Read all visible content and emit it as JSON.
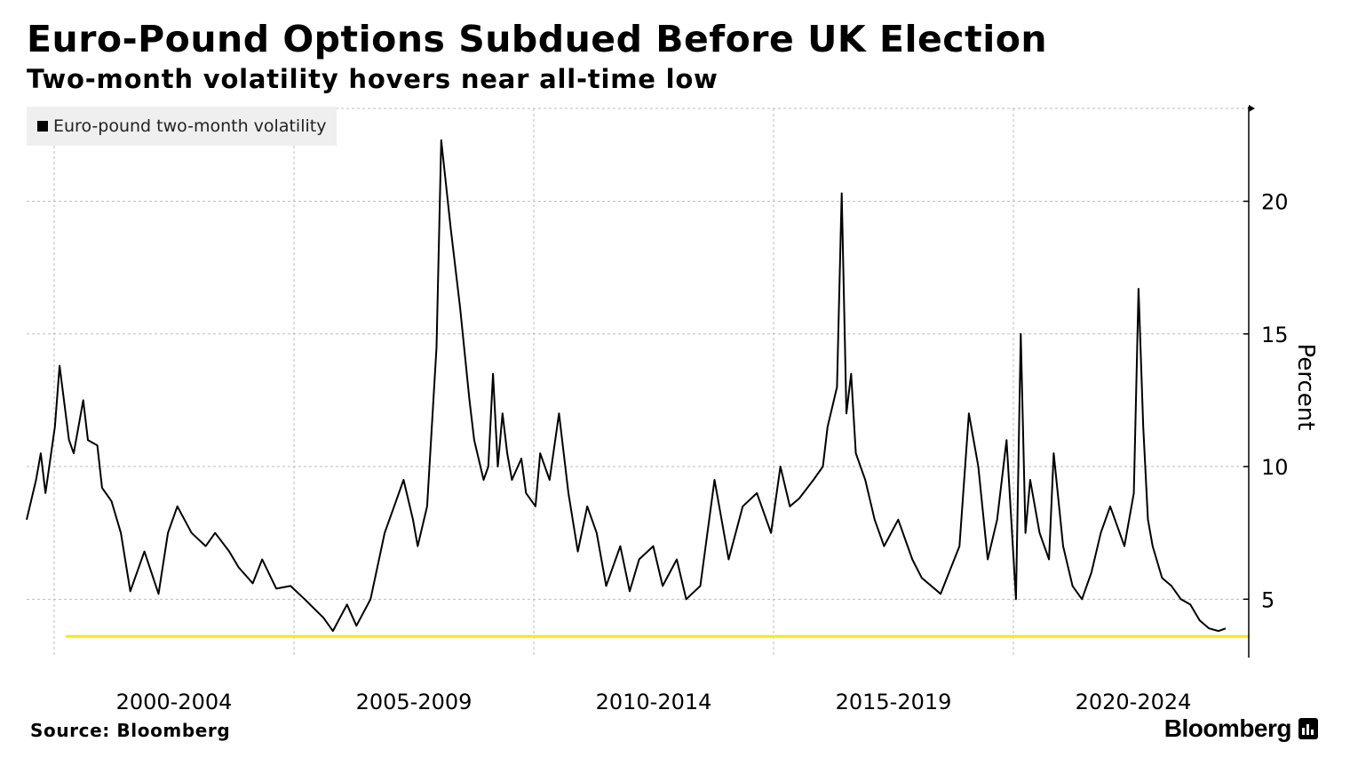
{
  "title": "Euro-Pound Options Subdued Before UK Election",
  "subtitle": "Two-month volatility hovers near all-time low",
  "source": "Source: Bloomberg",
  "brand": "Bloomberg",
  "colors": {
    "series": "#000000",
    "reference_line": "#f5e61c",
    "grid": "#bdbdbd",
    "legend_bg": "#efefef"
  },
  "chart_data": {
    "type": "line",
    "legend": [
      "Euro-pound two-month volatility"
    ],
    "legend_position": "top-left",
    "ylabel": "Percent",
    "y_axis_side": "right",
    "ylim": [
      2.8,
      23.5
    ],
    "xlim": [
      1999.0,
      2024.45
    ],
    "grid": true,
    "y_ticks": [
      5,
      10,
      15,
      20
    ],
    "x_tick_labels": [
      "2000-2004",
      "2005-2009",
      "2010-2014",
      "2015-2019",
      "2020-2024"
    ],
    "reference_line": {
      "y": 3.6
    },
    "series": [
      {
        "name": "Euro-pound two-month volatility",
        "x": [
          1999.0,
          1999.2,
          1999.3,
          1999.4,
          1999.6,
          1999.7,
          1999.9,
          2000.0,
          2000.2,
          2000.3,
          2000.5,
          2000.6,
          2000.8,
          2001.0,
          2001.2,
          2001.5,
          2001.8,
          2002.0,
          2002.2,
          2002.5,
          2002.8,
          2003.0,
          2003.3,
          2003.5,
          2003.8,
          2004.0,
          2004.3,
          2004.6,
          2004.9,
          2005.3,
          2005.5,
          2005.8,
          2006.0,
          2006.3,
          2006.6,
          2006.8,
          2007.0,
          2007.2,
          2007.3,
          2007.5,
          2007.7,
          2007.8,
          2008.0,
          2008.2,
          2008.4,
          2008.5,
          2008.7,
          2008.8,
          2008.9,
          2009.0,
          2009.1,
          2009.2,
          2009.3,
          2009.5,
          2009.6,
          2009.8,
          2009.9,
          2010.1,
          2010.3,
          2010.5,
          2010.7,
          2010.9,
          2011.1,
          2011.3,
          2011.6,
          2011.8,
          2012.0,
          2012.3,
          2012.5,
          2012.8,
          2013.0,
          2013.3,
          2013.6,
          2013.9,
          2014.2,
          2014.5,
          2014.8,
          2015.0,
          2015.2,
          2015.4,
          2015.7,
          2015.9,
          2016.0,
          2016.2,
          2016.3,
          2016.4,
          2016.5,
          2016.6,
          2016.8,
          2017.0,
          2017.2,
          2017.5,
          2017.8,
          2018.0,
          2018.4,
          2018.8,
          2019.0,
          2019.2,
          2019.4,
          2019.6,
          2019.8,
          2020.0,
          2020.1,
          2020.2,
          2020.3,
          2020.5,
          2020.7,
          2020.8,
          2021.0,
          2021.2,
          2021.4,
          2021.6,
          2021.8,
          2022.0,
          2022.3,
          2022.5,
          2022.6,
          2022.7,
          2022.8,
          2022.9,
          2023.1,
          2023.3,
          2023.5,
          2023.7,
          2023.9,
          2024.1,
          2024.3,
          2024.45
        ],
        "values": [
          8.0,
          9.5,
          10.5,
          9.0,
          11.5,
          13.8,
          11.0,
          10.5,
          12.5,
          11.0,
          10.8,
          9.2,
          8.7,
          7.5,
          5.3,
          6.8,
          5.2,
          7.5,
          8.5,
          7.5,
          7.0,
          7.5,
          6.8,
          6.2,
          5.6,
          6.5,
          5.4,
          5.5,
          5.0,
          4.3,
          3.8,
          4.8,
          4.0,
          5.0,
          7.5,
          8.5,
          9.5,
          8.0,
          7.0,
          8.5,
          14.5,
          22.3,
          19.0,
          16.0,
          12.5,
          11.0,
          9.5,
          10.0,
          13.5,
          10.0,
          12.0,
          10.5,
          9.5,
          10.3,
          9.0,
          8.5,
          10.5,
          9.5,
          12.0,
          9.0,
          6.8,
          8.5,
          7.5,
          5.5,
          7.0,
          5.3,
          6.5,
          7.0,
          5.5,
          6.5,
          5.0,
          5.5,
          9.5,
          6.5,
          8.5,
          9.0,
          7.5,
          10.0,
          8.5,
          8.8,
          9.5,
          10.0,
          11.5,
          13.0,
          20.3,
          12.0,
          13.5,
          10.5,
          9.5,
          8.0,
          7.0,
          8.0,
          6.5,
          5.8,
          5.2,
          7.0,
          12.0,
          10.0,
          6.5,
          8.0,
          11.0,
          5.0,
          15.0,
          7.5,
          9.5,
          7.5,
          6.5,
          10.5,
          7.0,
          5.5,
          5.0,
          6.0,
          7.5,
          8.5,
          7.0,
          9.0,
          16.7,
          11.5,
          8.0,
          7.0,
          5.8,
          5.5,
          5.0,
          4.8,
          4.2,
          3.9,
          3.8,
          3.9
        ]
      }
    ]
  }
}
